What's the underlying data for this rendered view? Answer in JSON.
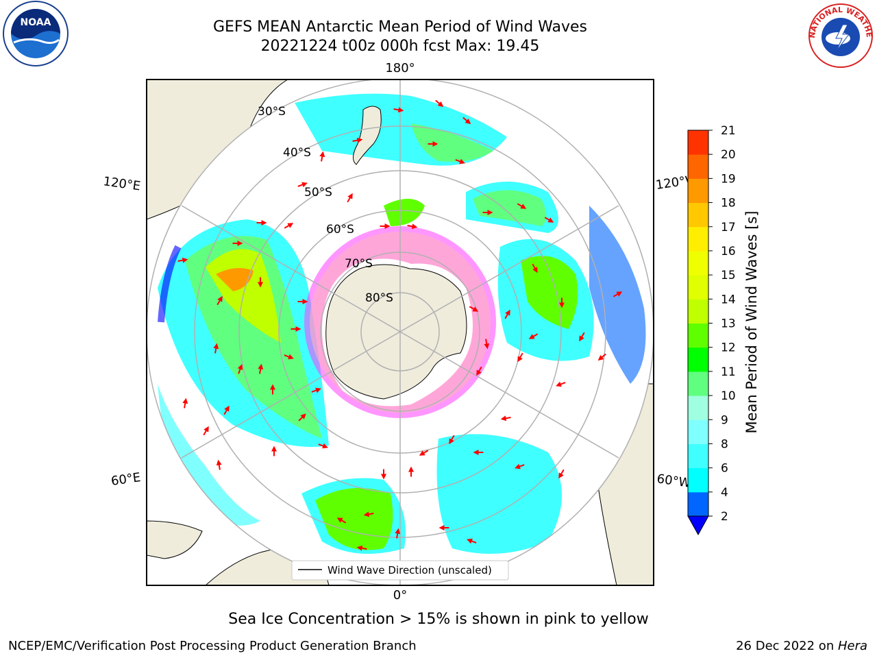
{
  "title": {
    "line1": "GEFS MEAN Antarctic Mean Period of Wind Waves",
    "line2": "20221224 t00z 000h fcst   Max: 19.45"
  },
  "map": {
    "projection": "south-polar-stereographic",
    "meridian_labels": {
      "top": "180°",
      "bottom": "0°",
      "left_upper": "120°E",
      "left_lower": "60°E",
      "right_upper": "120°W",
      "right_lower": "60°W"
    },
    "parallel_labels": [
      "30°S",
      "40°S",
      "50°S",
      "60°S",
      "70°S",
      "80°S"
    ],
    "legend_label": "Wind Wave Direction (unscaled)",
    "arrow_color": "#ff0000",
    "land_color": "#efecdc",
    "ice_colors": [
      "#ff40ff",
      "#ffb0c0",
      "#ffe066"
    ]
  },
  "colorbar": {
    "label": "Mean Period of Wind Waves [s]",
    "ticks": [
      "2",
      "4",
      "6",
      "8",
      "9",
      "10",
      "11",
      "12",
      "13",
      "14",
      "15",
      "16",
      "17",
      "18",
      "19",
      "20",
      "21"
    ],
    "colors": [
      "#0066ff",
      "#00ffff",
      "#40ffff",
      "#80ffff",
      "#a0ffe0",
      "#60ff80",
      "#00ff00",
      "#60ff00",
      "#c0ff00",
      "#e0ff00",
      "#f0ff00",
      "#ffee00",
      "#ffc800",
      "#ff9900",
      "#ff6600",
      "#ff3300",
      "#ff0000"
    ],
    "under_color": "#0000ff"
  },
  "footer": {
    "caption": "Sea Ice Concentration > 15% is shown in pink to yellow",
    "credit": "NCEP/EMC/Verification Post Processing Product Generation Branch",
    "date_prefix": "26 Dec 2022 on ",
    "date_system": "Hera"
  },
  "logos": {
    "noaa_text": "NOAA",
    "nws_text": "NATIONAL WEATHER SERVICE"
  }
}
